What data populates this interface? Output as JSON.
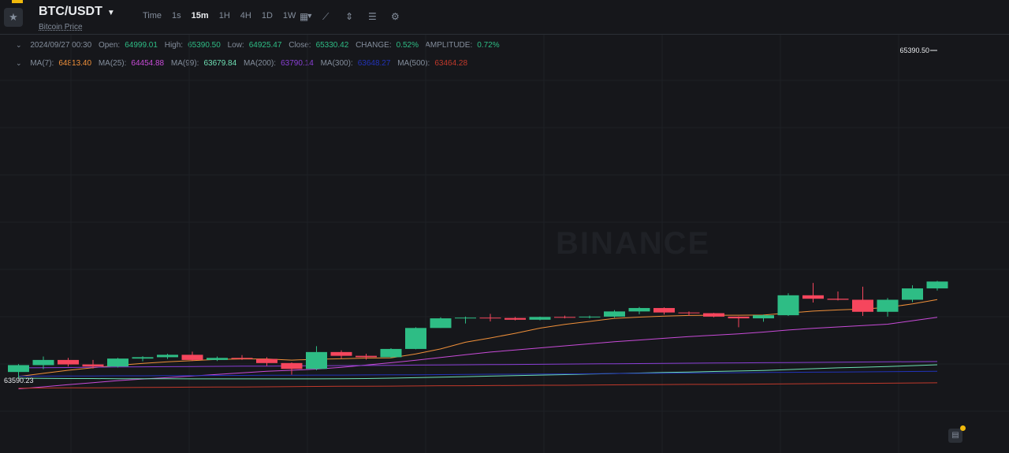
{
  "header": {
    "pair": "BTC/USDT",
    "subtitle": "Bitcoin Price",
    "intervals": [
      "Time",
      "1s",
      "15m",
      "1H",
      "4H",
      "1D",
      "1W"
    ],
    "active_interval": "15m",
    "tool_icons": [
      "calendar-icon",
      "indicator-icon",
      "candle-type-icon",
      "settings-sliders-icon",
      "gear-icon"
    ]
  },
  "ohlc": {
    "date": "2024/09/27 00:30",
    "open_label": "Open:",
    "open": "64999.01",
    "high_label": "High:",
    "high": "65390.50",
    "low_label": "Low:",
    "low": "64925.47",
    "close_label": "Close:",
    "close": "65330.42",
    "change_label": "CHANGE:",
    "change": "0.52%",
    "amplitude_label": "AMPLITUDE:",
    "amplitude": "0.72%"
  },
  "ma_legend": [
    {
      "label": "MA(7):",
      "value": "64813.40",
      "color": "#f0903a"
    },
    {
      "label": "MA(25):",
      "value": "64454.88",
      "color": "#c84bd8"
    },
    {
      "label": "MA(99):",
      "value": "63679.84",
      "color": "#6fe0b4"
    },
    {
      "label": "MA(200):",
      "value": "63790.14",
      "color": "#8a3fd6"
    },
    {
      "label": "MA(300):",
      "value": "63648.27",
      "color": "#2233b8"
    },
    {
      "label": "MA(500):",
      "value": "63464.28",
      "color": "#c0392b"
    }
  ],
  "watermark": "BINANCE",
  "colors": {
    "up": "#2ebd85",
    "down": "#f6465d",
    "accent": "#f0b90b",
    "background": "#16171b"
  },
  "chart_data": {
    "type": "candlestick",
    "interval": "15m",
    "high_marker": "65390.50",
    "low_marker": "63590.23",
    "candles": [
      {
        "o": 63594,
        "h": 63640,
        "l": 63560,
        "c": 63634
      },
      {
        "o": 63634,
        "h": 63684,
        "l": 63610,
        "c": 63664
      },
      {
        "o": 63664,
        "h": 63676,
        "l": 63626,
        "c": 63638
      },
      {
        "o": 63638,
        "h": 63664,
        "l": 63614,
        "c": 63626
      },
      {
        "o": 63626,
        "h": 63676,
        "l": 63620,
        "c": 63672
      },
      {
        "o": 63672,
        "h": 63686,
        "l": 63656,
        "c": 63680
      },
      {
        "o": 63680,
        "h": 63700,
        "l": 63670,
        "c": 63694
      },
      {
        "o": 63694,
        "h": 63712,
        "l": 63658,
        "c": 63664
      },
      {
        "o": 63664,
        "h": 63684,
        "l": 63658,
        "c": 63676
      },
      {
        "o": 63676,
        "h": 63692,
        "l": 63664,
        "c": 63670
      },
      {
        "o": 63670,
        "h": 63680,
        "l": 63630,
        "c": 63646
      },
      {
        "o": 63646,
        "h": 63650,
        "l": 63578,
        "c": 63612
      },
      {
        "o": 63612,
        "h": 63744,
        "l": 63604,
        "c": 63710
      },
      {
        "o": 63710,
        "h": 63720,
        "l": 63672,
        "c": 63688
      },
      {
        "o": 63688,
        "h": 63700,
        "l": 63666,
        "c": 63680
      },
      {
        "o": 63680,
        "h": 63732,
        "l": 63676,
        "c": 63728
      },
      {
        "o": 63728,
        "h": 63854,
        "l": 63726,
        "c": 63850
      },
      {
        "o": 63850,
        "h": 63912,
        "l": 63850,
        "c": 63906
      },
      {
        "o": 63906,
        "h": 63916,
        "l": 63876,
        "c": 63910
      },
      {
        "o": 63910,
        "h": 63932,
        "l": 63888,
        "c": 63908
      },
      {
        "o": 63908,
        "h": 63914,
        "l": 63894,
        "c": 63898
      },
      {
        "o": 63898,
        "h": 63916,
        "l": 63894,
        "c": 63914
      },
      {
        "o": 63914,
        "h": 63922,
        "l": 63906,
        "c": 63912
      },
      {
        "o": 63912,
        "h": 63922,
        "l": 63906,
        "c": 63916
      },
      {
        "o": 63916,
        "h": 63954,
        "l": 63910,
        "c": 63946
      },
      {
        "o": 63946,
        "h": 63972,
        "l": 63930,
        "c": 63966
      },
      {
        "o": 63966,
        "h": 63970,
        "l": 63928,
        "c": 63940
      },
      {
        "o": 63940,
        "h": 63946,
        "l": 63920,
        "c": 63936
      },
      {
        "o": 63936,
        "h": 63938,
        "l": 63912,
        "c": 63916
      },
      {
        "o": 63916,
        "h": 63918,
        "l": 63854,
        "c": 63906
      },
      {
        "o": 63906,
        "h": 63928,
        "l": 63886,
        "c": 63924
      },
      {
        "o": 63924,
        "h": 64052,
        "l": 63920,
        "c": 64040
      },
      {
        "o": 64040,
        "h": 64112,
        "l": 63998,
        "c": 64020
      },
      {
        "o": 64020,
        "h": 64062,
        "l": 64010,
        "c": 64014
      },
      {
        "o": 64014,
        "h": 64090,
        "l": 63920,
        "c": 63944
      },
      {
        "o": 63944,
        "h": 64024,
        "l": 63916,
        "c": 64014
      },
      {
        "o": 64014,
        "h": 64098,
        "l": 64000,
        "c": 64080
      },
      {
        "o": 64080,
        "h": 64124,
        "l": 64068,
        "c": 64120
      }
    ],
    "ma": [
      {
        "name": "MA(7)",
        "color": "#f0903a",
        "values": [
          63568,
          63586,
          63604,
          63619,
          63633,
          63644,
          63653,
          63660,
          63667,
          63670,
          63670,
          63663,
          63668,
          63671,
          63675,
          63676,
          63699,
          63728,
          63767,
          63792,
          63819,
          63849,
          63871,
          63888,
          63906,
          63913,
          63919,
          63923,
          63924,
          63924,
          63925,
          63937,
          63948,
          63955,
          63960,
          63969,
          63990,
          64015
        ]
      },
      {
        "name": "MA(25)",
        "color": "#c84bd8",
        "values": [
          63496,
          63508,
          63520,
          63532,
          63544,
          63553,
          63562,
          63571,
          63580,
          63589,
          63598,
          63604,
          63611,
          63621,
          63634,
          63648,
          63662,
          63678,
          63694,
          63710,
          63722,
          63734,
          63746,
          63758,
          63770,
          63780,
          63790,
          63800,
          63808,
          63816,
          63826,
          63838,
          63848,
          63856,
          63864,
          63872,
          63892,
          63912
        ]
      },
      {
        "name": "MA(99)",
        "color": "#6fe0b4",
        "values": [
          63558,
          63557,
          63556,
          63556,
          63555,
          63555,
          63555,
          63554,
          63554,
          63554,
          63554,
          63554,
          63554,
          63555,
          63556,
          63558,
          63561,
          63564,
          63567,
          63570,
          63573,
          63576,
          63579,
          63582,
          63585,
          63588,
          63591,
          63594,
          63597,
          63600,
          63603,
          63608,
          63613,
          63618,
          63622,
          63626,
          63631,
          63636
        ]
      },
      {
        "name": "MA(200)",
        "color": "#8a3fd6",
        "values": [
          63618,
          63619,
          63620,
          63622,
          63623,
          63624,
          63625,
          63626,
          63627,
          63628,
          63628,
          63629,
          63630,
          63631,
          63632,
          63633,
          63634,
          63635,
          63636,
          63637,
          63638,
          63639,
          63640,
          63641,
          63642,
          63643,
          63644,
          63645,
          63646,
          63647,
          63648,
          63649,
          63650,
          63651,
          63652,
          63653,
          63654,
          63655
        ]
      },
      {
        "name": "MA(300)",
        "color": "#2233b8",
        "values": [
          63570,
          63570,
          63571,
          63571,
          63572,
          63572,
          63573,
          63573,
          63574,
          63574,
          63575,
          63575,
          63576,
          63576,
          63577,
          63578,
          63578,
          63579,
          63580,
          63581,
          63581,
          63582,
          63583,
          63584,
          63585,
          63586,
          63587,
          63588,
          63589,
          63590,
          63591,
          63592,
          63593,
          63594,
          63595,
          63596,
          63597,
          63598
        ]
      },
      {
        "name": "MA(500)",
        "color": "#c0392b",
        "values": [
          63500,
          63501,
          63502,
          63502,
          63503,
          63504,
          63505,
          63506,
          63507,
          63507,
          63508,
          63509,
          63510,
          63511,
          63511,
          63512,
          63513,
          63514,
          63514,
          63515,
          63516,
          63517,
          63517,
          63518,
          63519,
          63520,
          63521,
          63522,
          63522,
          63523,
          63524,
          63525,
          63526,
          63527,
          63528,
          63529,
          63530,
          63531
        ]
      }
    ]
  }
}
